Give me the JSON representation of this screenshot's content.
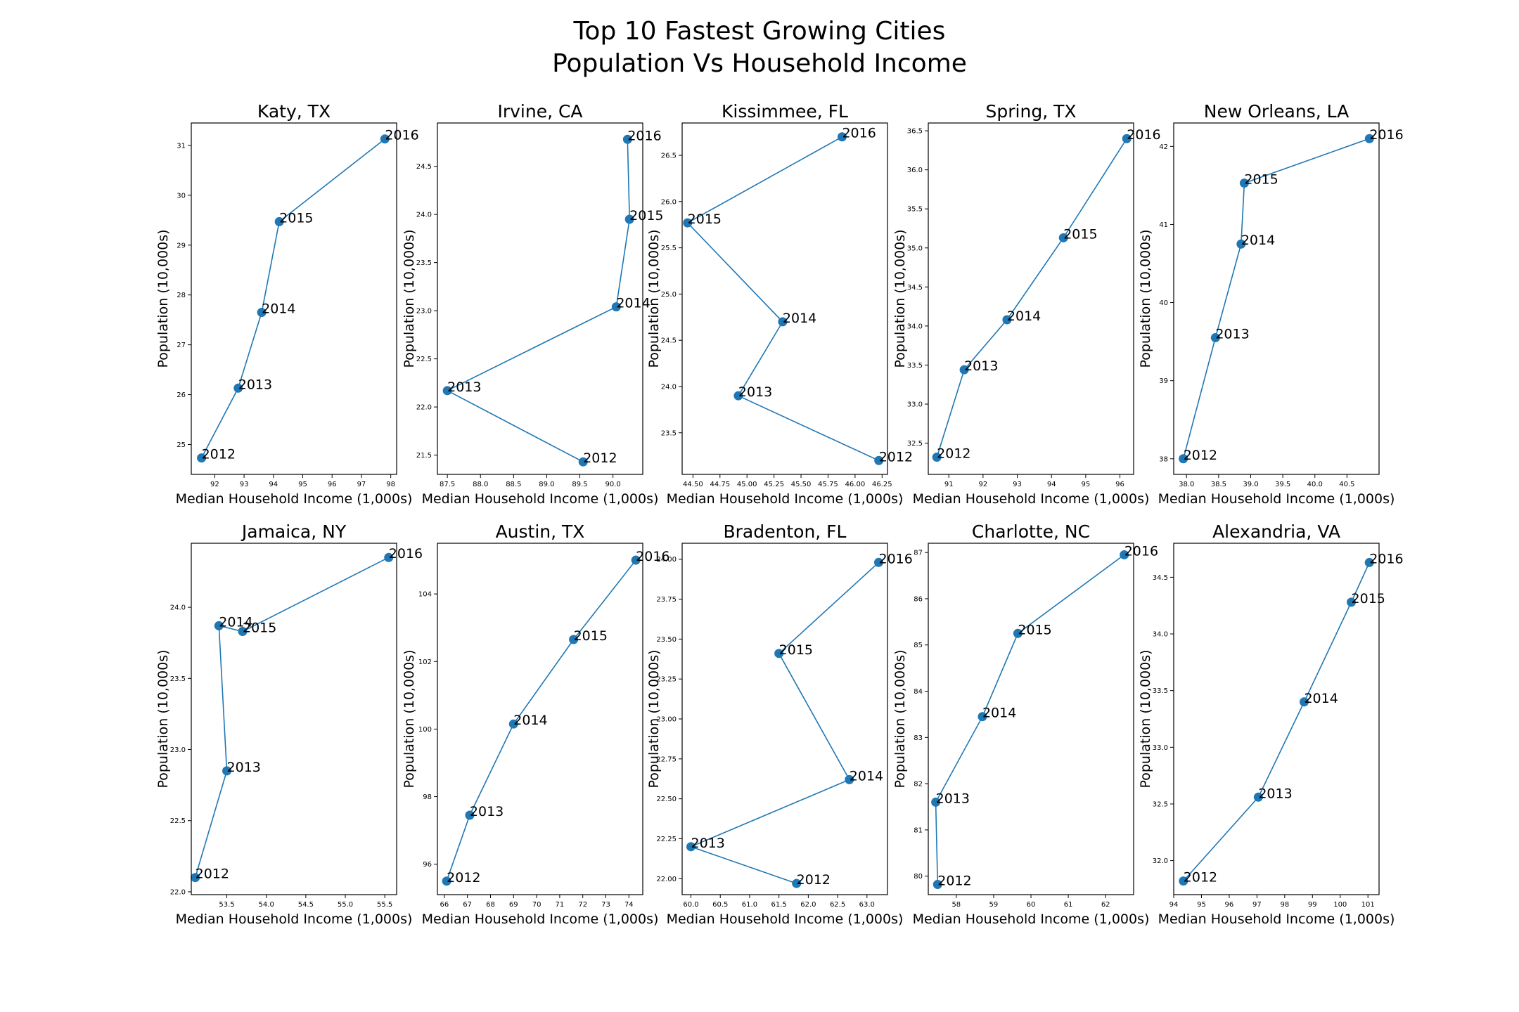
{
  "figure": {
    "title_line1": "Top 10 Fastest Growing Cities",
    "title_line2": "Population Vs Household Income",
    "series_color": "#1f77b4"
  },
  "chart_data": [
    {
      "type": "line",
      "title": "Katy, TX",
      "xlabel": "Median Household Income (1,000s)",
      "ylabel": "Population (10,000s)",
      "xlim": [
        91.2,
        98.2
      ],
      "ylim": [
        24.4,
        31.45
      ],
      "xticks": [
        {
          "v": 92,
          "label": "92"
        },
        {
          "v": 93,
          "label": "93"
        },
        {
          "v": 94,
          "label": "94"
        },
        {
          "v": 95,
          "label": "95"
        },
        {
          "v": 96,
          "label": "96"
        },
        {
          "v": 97,
          "label": "97"
        },
        {
          "v": 98,
          "label": "98"
        }
      ],
      "yticks": [
        {
          "v": 25,
          "label": "25"
        },
        {
          "v": 26,
          "label": "26"
        },
        {
          "v": 27,
          "label": "27"
        },
        {
          "v": 28,
          "label": "28"
        },
        {
          "v": 29,
          "label": "29"
        },
        {
          "v": 30,
          "label": "30"
        },
        {
          "v": 31,
          "label": "31"
        }
      ],
      "points": [
        {
          "label": "2012",
          "x": 91.55,
          "y": 24.73
        },
        {
          "label": "2013",
          "x": 92.8,
          "y": 26.13
        },
        {
          "label": "2014",
          "x": 93.6,
          "y": 27.65
        },
        {
          "label": "2015",
          "x": 94.2,
          "y": 29.47
        },
        {
          "label": "2016",
          "x": 97.8,
          "y": 31.13
        }
      ]
    },
    {
      "type": "line",
      "title": "Irvine, CA",
      "xlabel": "Median Household Income (1,000s)",
      "ylabel": "Population (10,000s)",
      "xlim": [
        87.35,
        90.45
      ],
      "ylim": [
        21.3,
        24.95
      ],
      "xticks": [
        {
          "v": 87.5,
          "label": "87.5"
        },
        {
          "v": 88,
          "label": "88.0"
        },
        {
          "v": 88.5,
          "label": "88.5"
        },
        {
          "v": 89,
          "label": "89.0"
        },
        {
          "v": 89.5,
          "label": "89.5"
        },
        {
          "v": 90,
          "label": "90.0"
        }
      ],
      "yticks": [
        {
          "v": 21.5,
          "label": "21.5"
        },
        {
          "v": 22,
          "label": "22.0"
        },
        {
          "v": 22.5,
          "label": "22.5"
        },
        {
          "v": 23,
          "label": "23.0"
        },
        {
          "v": 23.5,
          "label": "23.5"
        },
        {
          "v": 24,
          "label": "24.0"
        },
        {
          "v": 24.5,
          "label": "24.5"
        }
      ],
      "points": [
        {
          "label": "2012",
          "x": 89.55,
          "y": 21.43
        },
        {
          "label": "2013",
          "x": 87.5,
          "y": 22.17
        },
        {
          "label": "2014",
          "x": 90.05,
          "y": 23.04
        },
        {
          "label": "2015",
          "x": 90.25,
          "y": 23.95
        },
        {
          "label": "2016",
          "x": 90.22,
          "y": 24.78
        }
      ]
    },
    {
      "type": "line",
      "title": "Kissimmee, FL",
      "xlabel": "Median Household Income (1,000s)",
      "ylabel": "Population (10,000s)",
      "xlim": [
        44.4,
        46.3
      ],
      "ylim": [
        23.05,
        26.85
      ],
      "xticks": [
        {
          "v": 44.5,
          "label": "44.50"
        },
        {
          "v": 44.75,
          "label": "44.75"
        },
        {
          "v": 45,
          "label": "45.00"
        },
        {
          "v": 45.25,
          "label": "45.25"
        },
        {
          "v": 45.5,
          "label": "45.50"
        },
        {
          "v": 45.75,
          "label": "45.75"
        },
        {
          "v": 46,
          "label": "46.00"
        },
        {
          "v": 46.25,
          "label": "46.25"
        }
      ],
      "yticks": [
        {
          "v": 23.5,
          "label": "23.5"
        },
        {
          "v": 24,
          "label": "24.0"
        },
        {
          "v": 24.5,
          "label": "24.5"
        },
        {
          "v": 25,
          "label": "25.0"
        },
        {
          "v": 25.5,
          "label": "25.5"
        },
        {
          "v": 26,
          "label": "26.0"
        },
        {
          "v": 26.5,
          "label": "26.5"
        }
      ],
      "points": [
        {
          "label": "2012",
          "x": 46.22,
          "y": 23.2
        },
        {
          "label": "2013",
          "x": 44.92,
          "y": 23.9
        },
        {
          "label": "2014",
          "x": 45.33,
          "y": 24.7
        },
        {
          "label": "2015",
          "x": 44.45,
          "y": 25.77
        },
        {
          "label": "2016",
          "x": 45.88,
          "y": 26.7
        }
      ]
    },
    {
      "type": "line",
      "title": "Spring, TX",
      "xlabel": "Median Household Income (1,000s)",
      "ylabel": "Population (10,000s)",
      "xlim": [
        90.4,
        96.4
      ],
      "ylim": [
        32.1,
        36.6
      ],
      "xticks": [
        {
          "v": 91,
          "label": "91"
        },
        {
          "v": 92,
          "label": "92"
        },
        {
          "v": 93,
          "label": "93"
        },
        {
          "v": 94,
          "label": "94"
        },
        {
          "v": 95,
          "label": "95"
        },
        {
          "v": 96,
          "label": "96"
        }
      ],
      "yticks": [
        {
          "v": 32.5,
          "label": "32.5"
        },
        {
          "v": 33,
          "label": "33.0"
        },
        {
          "v": 33.5,
          "label": "33.5"
        },
        {
          "v": 34,
          "label": "34.0"
        },
        {
          "v": 34.5,
          "label": "34.5"
        },
        {
          "v": 35,
          "label": "35.0"
        },
        {
          "v": 35.5,
          "label": "35.5"
        },
        {
          "v": 36,
          "label": "36.0"
        },
        {
          "v": 36.5,
          "label": "36.5"
        }
      ],
      "points": [
        {
          "label": "2012",
          "x": 90.65,
          "y": 32.32
        },
        {
          "label": "2013",
          "x": 91.45,
          "y": 33.44
        },
        {
          "label": "2014",
          "x": 92.7,
          "y": 34.08
        },
        {
          "label": "2015",
          "x": 94.35,
          "y": 35.13
        },
        {
          "label": "2016",
          "x": 96.2,
          "y": 36.4
        }
      ]
    },
    {
      "type": "line",
      "title": "New Orleans, LA",
      "xlabel": "Median Household Income (1,000s)",
      "ylabel": "Population (10,000s)",
      "xlim": [
        37.8,
        41.0
      ],
      "ylim": [
        37.8,
        42.3
      ],
      "xticks": [
        {
          "v": 38,
          "label": "38.0"
        },
        {
          "v": 38.5,
          "label": "38.5"
        },
        {
          "v": 39,
          "label": "39.0"
        },
        {
          "v": 39.5,
          "label": "39.5"
        },
        {
          "v": 40,
          "label": "40.0"
        },
        {
          "v": 40.5,
          "label": "40.5"
        }
      ],
      "yticks": [
        {
          "v": 38,
          "label": "38"
        },
        {
          "v": 39,
          "label": "39"
        },
        {
          "v": 40,
          "label": "40"
        },
        {
          "v": 41,
          "label": "41"
        },
        {
          "v": 42,
          "label": "42"
        }
      ],
      "points": [
        {
          "label": "2012",
          "x": 37.95,
          "y": 38.0
        },
        {
          "label": "2013",
          "x": 38.45,
          "y": 39.55
        },
        {
          "label": "2014",
          "x": 38.85,
          "y": 40.75
        },
        {
          "label": "2015",
          "x": 38.9,
          "y": 41.53
        },
        {
          "label": "2016",
          "x": 40.85,
          "y": 42.1
        }
      ]
    },
    {
      "type": "line",
      "title": "Jamaica, NY",
      "xlabel": "Median Household Income (1,000s)",
      "ylabel": "Population (10,000s)",
      "xlim": [
        53.05,
        55.65
      ],
      "ylim": [
        21.98,
        24.45
      ],
      "xticks": [
        {
          "v": 53.5,
          "label": "53.5"
        },
        {
          "v": 54,
          "label": "54.0"
        },
        {
          "v": 54.5,
          "label": "54.5"
        },
        {
          "v": 55,
          "label": "55.0"
        },
        {
          "v": 55.5,
          "label": "55.5"
        }
      ],
      "yticks": [
        {
          "v": 22,
          "label": "22.0"
        },
        {
          "v": 22.5,
          "label": "22.5"
        },
        {
          "v": 23,
          "label": "23.0"
        },
        {
          "v": 23.5,
          "label": "23.5"
        },
        {
          "v": 24,
          "label": "24.0"
        }
      ],
      "points": [
        {
          "label": "2012",
          "x": 53.1,
          "y": 22.1
        },
        {
          "label": "2013",
          "x": 53.5,
          "y": 22.85
        },
        {
          "label": "2014",
          "x": 53.4,
          "y": 23.87
        },
        {
          "label": "2015",
          "x": 53.7,
          "y": 23.83
        },
        {
          "label": "2016",
          "x": 55.55,
          "y": 24.35
        }
      ]
    },
    {
      "type": "line",
      "title": "Austin, TX",
      "xlabel": "Median Household Income (1,000s)",
      "ylabel": "Population (10,000s)",
      "xlim": [
        65.7,
        74.6
      ],
      "ylim": [
        95.1,
        105.5
      ],
      "xticks": [
        {
          "v": 66,
          "label": "66"
        },
        {
          "v": 67,
          "label": "67"
        },
        {
          "v": 68,
          "label": "68"
        },
        {
          "v": 69,
          "label": "69"
        },
        {
          "v": 70,
          "label": "70"
        },
        {
          "v": 71,
          "label": "71"
        },
        {
          "v": 72,
          "label": "72"
        },
        {
          "v": 73,
          "label": "73"
        },
        {
          "v": 74,
          "label": "74"
        }
      ],
      "yticks": [
        {
          "v": 96,
          "label": "96"
        },
        {
          "v": 98,
          "label": "98"
        },
        {
          "v": 100,
          "label": "100"
        },
        {
          "v": 102,
          "label": "102"
        },
        {
          "v": 104,
          "label": "104"
        }
      ],
      "points": [
        {
          "label": "2012",
          "x": 66.1,
          "y": 95.5
        },
        {
          "label": "2013",
          "x": 67.1,
          "y": 97.45
        },
        {
          "label": "2014",
          "x": 69.0,
          "y": 100.15
        },
        {
          "label": "2015",
          "x": 71.6,
          "y": 102.65
        },
        {
          "label": "2016",
          "x": 74.3,
          "y": 105.0
        }
      ]
    },
    {
      "type": "line",
      "title": "Bradenton, FL",
      "xlabel": "Median Household Income (1,000s)",
      "ylabel": "Population (10,000s)",
      "xlim": [
        59.85,
        63.35
      ],
      "ylim": [
        21.9,
        24.1
      ],
      "xticks": [
        {
          "v": 60,
          "label": "60.0"
        },
        {
          "v": 60.5,
          "label": "60.5"
        },
        {
          "v": 61,
          "label": "61.0"
        },
        {
          "v": 61.5,
          "label": "61.5"
        },
        {
          "v": 62,
          "label": "62.0"
        },
        {
          "v": 62.5,
          "label": "62.5"
        },
        {
          "v": 63,
          "label": "63.0"
        }
      ],
      "yticks": [
        {
          "v": 22,
          "label": "22.00"
        },
        {
          "v": 22.25,
          "label": "22.25"
        },
        {
          "v": 22.5,
          "label": "22.50"
        },
        {
          "v": 22.75,
          "label": "22.75"
        },
        {
          "v": 23,
          "label": "23.00"
        },
        {
          "v": 23.25,
          "label": "23.25"
        },
        {
          "v": 23.5,
          "label": "23.50"
        },
        {
          "v": 23.75,
          "label": "23.75"
        },
        {
          "v": 24,
          "label": "24.00"
        }
      ],
      "points": [
        {
          "label": "2012",
          "x": 61.8,
          "y": 21.97
        },
        {
          "label": "2013",
          "x": 60.0,
          "y": 22.2
        },
        {
          "label": "2014",
          "x": 62.7,
          "y": 22.62
        },
        {
          "label": "2015",
          "x": 61.5,
          "y": 23.41
        },
        {
          "label": "2016",
          "x": 63.2,
          "y": 23.98
        }
      ]
    },
    {
      "type": "line",
      "title": "Charlotte, NC",
      "xlabel": "Median Household Income (1,000s)",
      "ylabel": "Population (10,000s)",
      "xlim": [
        57.25,
        62.75
      ],
      "ylim": [
        79.6,
        87.2
      ],
      "xticks": [
        {
          "v": 58,
          "label": "58"
        },
        {
          "v": 59,
          "label": "59"
        },
        {
          "v": 60,
          "label": "60"
        },
        {
          "v": 61,
          "label": "61"
        },
        {
          "v": 62,
          "label": "62"
        }
      ],
      "yticks": [
        {
          "v": 80,
          "label": "80"
        },
        {
          "v": 81,
          "label": "81"
        },
        {
          "v": 82,
          "label": "82"
        },
        {
          "v": 83,
          "label": "83"
        },
        {
          "v": 84,
          "label": "84"
        },
        {
          "v": 85,
          "label": "85"
        },
        {
          "v": 86,
          "label": "86"
        },
        {
          "v": 87,
          "label": "87"
        }
      ],
      "points": [
        {
          "label": "2012",
          "x": 57.5,
          "y": 79.82
        },
        {
          "label": "2013",
          "x": 57.45,
          "y": 81.6
        },
        {
          "label": "2014",
          "x": 58.7,
          "y": 83.45
        },
        {
          "label": "2015",
          "x": 59.65,
          "y": 85.25
        },
        {
          "label": "2016",
          "x": 62.5,
          "y": 86.95
        }
      ]
    },
    {
      "type": "line",
      "title": "Alexandria, VA",
      "xlabel": "Median Household Income (1,000s)",
      "ylabel": "Population (10,000s)",
      "xlim": [
        94.0,
        101.4
      ],
      "ylim": [
        31.7,
        34.8
      ],
      "xticks": [
        {
          "v": 94,
          "label": "94"
        },
        {
          "v": 95,
          "label": "95"
        },
        {
          "v": 96,
          "label": "96"
        },
        {
          "v": 97,
          "label": "97"
        },
        {
          "v": 98,
          "label": "98"
        },
        {
          "v": 99,
          "label": "99"
        },
        {
          "v": 100,
          "label": "100"
        },
        {
          "v": 101,
          "label": "101"
        }
      ],
      "yticks": [
        {
          "v": 32,
          "label": "32.0"
        },
        {
          "v": 32.5,
          "label": "32.5"
        },
        {
          "v": 33,
          "label": "33.0"
        },
        {
          "v": 33.5,
          "label": "33.5"
        },
        {
          "v": 34,
          "label": "34.0"
        },
        {
          "v": 34.5,
          "label": "34.5"
        }
      ],
      "points": [
        {
          "label": "2012",
          "x": 94.35,
          "y": 31.82
        },
        {
          "label": "2013",
          "x": 97.05,
          "y": 32.56
        },
        {
          "label": "2014",
          "x": 98.7,
          "y": 33.4
        },
        {
          "label": "2015",
          "x": 100.4,
          "y": 34.28
        },
        {
          "label": "2016",
          "x": 101.05,
          "y": 34.63
        }
      ]
    }
  ]
}
